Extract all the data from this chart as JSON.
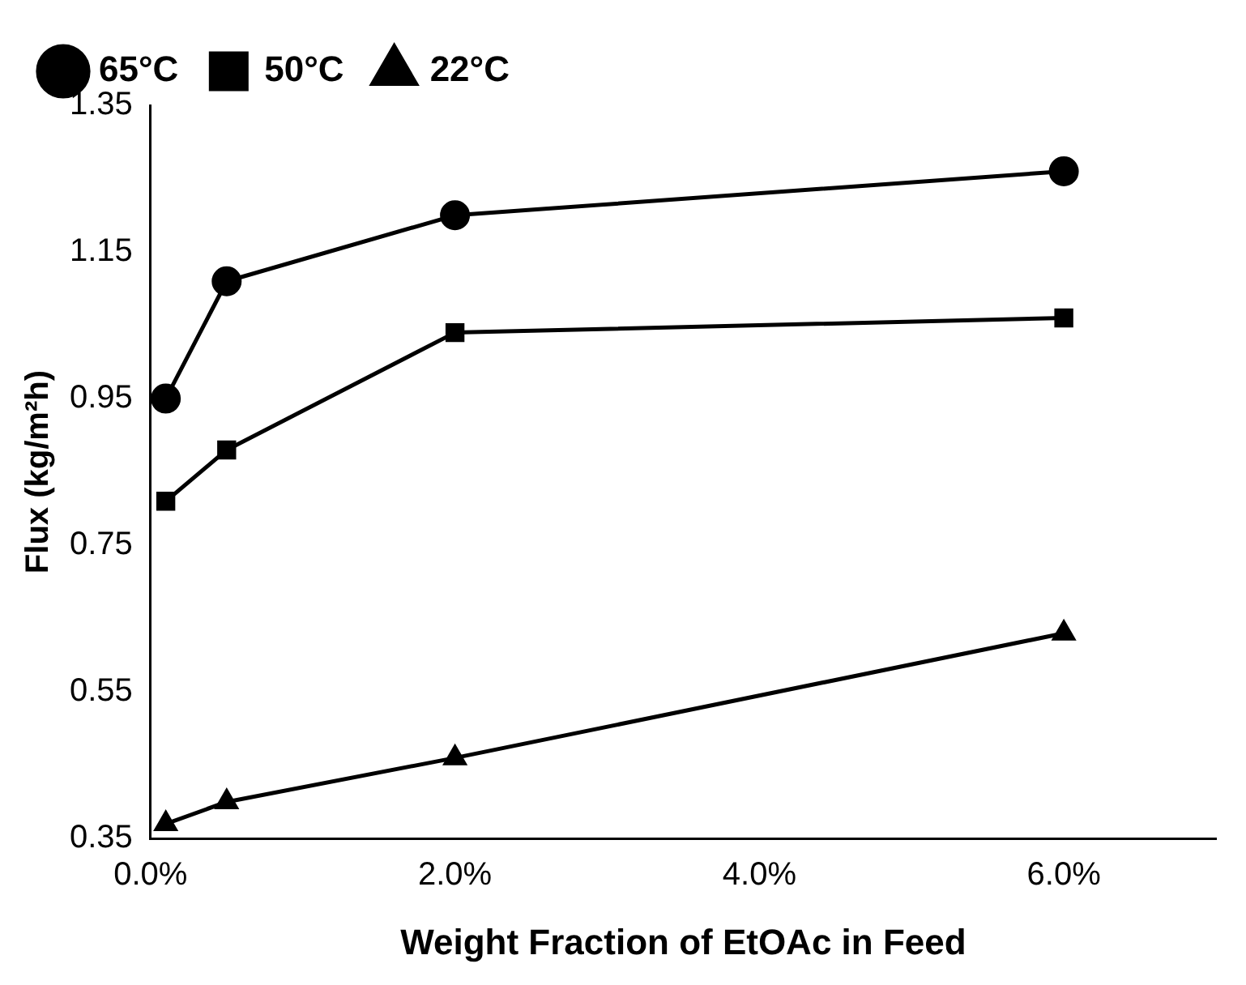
{
  "chart_data": {
    "type": "line",
    "xlabel": "Weight Fraction of EtOAc in Feed",
    "ylabel": "Flux (kg/m²h)",
    "xlim": [
      0,
      7
    ],
    "xticks": [
      {
        "value": 0,
        "label": "0.0%"
      },
      {
        "value": 2,
        "label": "2.0%"
      },
      {
        "value": 4,
        "label": "4.0%"
      },
      {
        "value": 6,
        "label": "6.0%"
      }
    ],
    "ylim": [
      0.35,
      1.35
    ],
    "yticks": [
      0.35,
      0.55,
      0.75,
      0.95,
      1.15,
      1.35
    ],
    "x": [
      0.1,
      0.5,
      2,
      6
    ],
    "series": [
      {
        "name": "65°C",
        "color": "#000000",
        "marker": "circle",
        "values": [
          0.95,
          1.11,
          1.2,
          1.26
        ]
      },
      {
        "name": "50°C",
        "color": "#000000",
        "marker": "square",
        "values": [
          0.81,
          0.88,
          1.04,
          1.06
        ]
      },
      {
        "name": "22°C",
        "color": "#000000",
        "marker": "triangle",
        "values": [
          0.37,
          0.4,
          0.46,
          0.63
        ]
      }
    ],
    "grid": false,
    "legend": "top left",
    "line_style": "solid"
  }
}
